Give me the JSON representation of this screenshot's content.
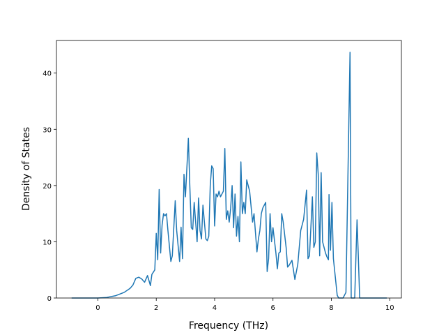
{
  "chart_data": {
    "type": "line",
    "x_label": "Frequency (THz)",
    "y_label": "Density of States",
    "color": "#1f77b4",
    "x": [
      -0.9,
      0,
      0.3,
      0.6,
      0.9,
      1.1,
      1.2,
      1.3,
      1.4,
      1.5,
      1.6,
      1.7,
      1.8,
      1.85,
      1.95,
      2.0,
      2.05,
      2.1,
      2.15,
      2.2,
      2.25,
      2.3,
      2.35,
      2.4,
      2.5,
      2.55,
      2.65,
      2.7,
      2.8,
      2.85,
      2.9,
      2.95,
      3.0,
      3.1,
      3.15,
      3.2,
      3.25,
      3.3,
      3.4,
      3.45,
      3.5,
      3.55,
      3.6,
      3.7,
      3.75,
      3.8,
      3.85,
      3.9,
      3.95,
      4.0,
      4.05,
      4.1,
      4.15,
      4.2,
      4.3,
      4.35,
      4.4,
      4.45,
      4.5,
      4.55,
      4.6,
      4.65,
      4.7,
      4.75,
      4.8,
      4.85,
      4.9,
      4.95,
      5.0,
      5.05,
      5.1,
      5.2,
      5.3,
      5.35,
      5.45,
      5.5,
      5.55,
      5.6,
      5.65,
      5.75,
      5.8,
      5.85,
      5.9,
      5.95,
      6.0,
      6.1,
      6.15,
      6.2,
      6.25,
      6.3,
      6.35,
      6.45,
      6.5,
      6.55,
      6.65,
      6.75,
      6.85,
      6.95,
      7.05,
      7.15,
      7.2,
      7.25,
      7.35,
      7.4,
      7.45,
      7.5,
      7.55,
      7.6,
      7.65,
      7.7,
      7.8,
      7.85,
      7.9,
      7.92,
      7.97,
      8.02,
      8.07,
      8.15,
      8.2,
      8.25,
      8.4,
      8.5,
      8.64,
      8.68,
      8.8,
      8.88,
      8.92,
      8.97,
      9.9
    ],
    "values": [
      0,
      0,
      0.1,
      0.4,
      1.0,
      1.7,
      2.3,
      3.5,
      3.7,
      3.4,
      2.8,
      4.0,
      2.2,
      4.2,
      5.0,
      11.5,
      6.8,
      19.3,
      8.0,
      13.0,
      15.0,
      14.6,
      15.0,
      12.0,
      6.5,
      7.5,
      17.3,
      12.0,
      6.5,
      12.6,
      7.0,
      22.0,
      18.0,
      28.4,
      20.0,
      12.5,
      12.2,
      17.0,
      10.0,
      17.8,
      12.0,
      10.5,
      16.5,
      10.5,
      10.2,
      11.0,
      20.0,
      23.5,
      23.0,
      12.8,
      18.5,
      18.0,
      19.0,
      18.0,
      19.0,
      26.6,
      14.0,
      15.5,
      13.5,
      16.0,
      20.0,
      12.5,
      18.5,
      11.0,
      14.5,
      10.0,
      24.2,
      15.0,
      17.0,
      15.0,
      21.0,
      19.0,
      13.5,
      15.0,
      8.2,
      10.5,
      12.0,
      15.0,
      16.0,
      17.0,
      4.7,
      7.0,
      15.0,
      10.0,
      12.5,
      8.0,
      5.2,
      8.0,
      8.2,
      15.0,
      13.5,
      9.0,
      5.5,
      5.8,
      6.7,
      3.3,
      6.0,
      12.0,
      14.0,
      19.2,
      7.0,
      7.5,
      18.0,
      9.0,
      10.0,
      25.8,
      22.0,
      7.5,
      22.3,
      10.0,
      8.0,
      7.3,
      6.8,
      18.4,
      8.5,
      17.0,
      7.0,
      3.0,
      0.5,
      0,
      0,
      1.0,
      43.7,
      0,
      0,
      13.9,
      8.0,
      0,
      0
    ],
    "xlim": [
      -1.42,
      10.4
    ],
    "ylim": [
      0,
      45.8
    ],
    "xticks": [
      0,
      2,
      4,
      6,
      8,
      10
    ],
    "yticks": [
      0,
      10,
      20,
      30,
      40
    ]
  }
}
